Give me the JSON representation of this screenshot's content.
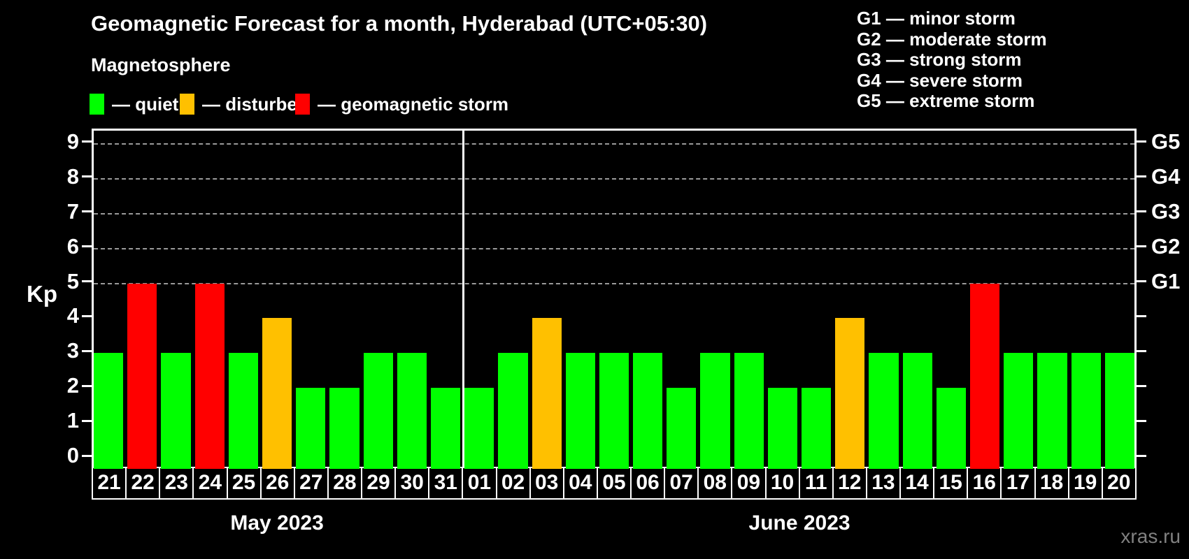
{
  "title": "Geomagnetic Forecast for a month, Hyderabad (UTC+05:30)",
  "subtitle": "Magnetosphere",
  "legend": {
    "items": [
      {
        "key": "quiet",
        "label": "— quiet",
        "color": "#00ff00"
      },
      {
        "key": "disturbed",
        "label": "— disturbed",
        "color": "#ffc000"
      },
      {
        "key": "storm",
        "label": "— geomagnetic storm",
        "color": "#ff0000"
      }
    ]
  },
  "storm_scale_legend": [
    "G1 — minor storm",
    "G2 — moderate storm",
    "G3 — strong storm",
    "G4 — severe storm",
    "G5 — extreme storm"
  ],
  "watermark": "xras.ru",
  "chart_data": {
    "type": "bar",
    "title": "Geomagnetic Forecast for a month, Hyderabad (UTC+05:30)",
    "xlabel": "",
    "ylabel": "Kp",
    "ylim": [
      -0.35,
      9.38
    ],
    "yticks": [
      0,
      1,
      2,
      3,
      4,
      5,
      6,
      7,
      8,
      9
    ],
    "gridlines_at": [
      5,
      6,
      7,
      8,
      9
    ],
    "grid": "horizontal dashed lines at storm thresholds G1–G5",
    "legend_position": "top",
    "right_axis_labels": [
      {
        "value": 5,
        "label": "G1"
      },
      {
        "value": 6,
        "label": "G2"
      },
      {
        "value": 7,
        "label": "G3"
      },
      {
        "value": 8,
        "label": "G4"
      },
      {
        "value": 9,
        "label": "G5"
      }
    ],
    "months": [
      {
        "label": "May 2023",
        "days": 11
      },
      {
        "label": "June 2023",
        "days": 20
      }
    ],
    "categories": [
      "21",
      "22",
      "23",
      "24",
      "25",
      "26",
      "27",
      "28",
      "29",
      "30",
      "31",
      "01",
      "02",
      "03",
      "04",
      "05",
      "06",
      "07",
      "08",
      "09",
      "10",
      "11",
      "12",
      "13",
      "14",
      "15",
      "16",
      "17",
      "18",
      "19",
      "20"
    ],
    "values": [
      3,
      5,
      3,
      5,
      3,
      4,
      2,
      2,
      3,
      3,
      2,
      2,
      3,
      4,
      3,
      3,
      3,
      2,
      3,
      3,
      2,
      2,
      4,
      3,
      3,
      2,
      5,
      3,
      3,
      3,
      3
    ],
    "levels": [
      "quiet",
      "storm",
      "quiet",
      "storm",
      "quiet",
      "disturbed",
      "quiet",
      "quiet",
      "quiet",
      "quiet",
      "quiet",
      "quiet",
      "quiet",
      "disturbed",
      "quiet",
      "quiet",
      "quiet",
      "quiet",
      "quiet",
      "quiet",
      "quiet",
      "quiet",
      "disturbed",
      "quiet",
      "quiet",
      "quiet",
      "storm",
      "quiet",
      "quiet",
      "quiet",
      "quiet"
    ],
    "colors": {
      "quiet": "#00ff00",
      "disturbed": "#ffc000",
      "storm": "#ff0000"
    }
  }
}
